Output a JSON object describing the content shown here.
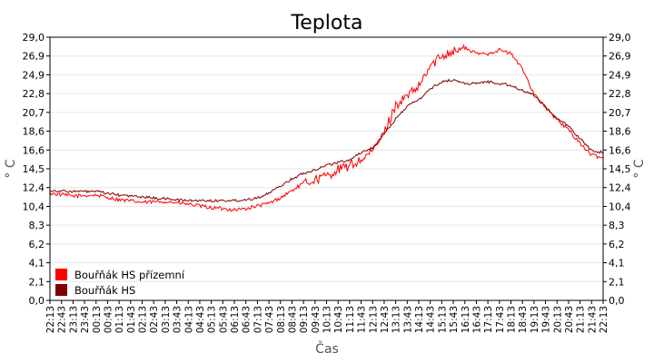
{
  "chart_data": {
    "type": "line",
    "title": "Teplota",
    "xlabel": "Čas",
    "ylabel": "° C",
    "ylim": [
      0,
      29
    ],
    "y_ticks": [
      "0,0",
      "2,1",
      "4,1",
      "6,2",
      "8,3",
      "10,4",
      "12,4",
      "14,5",
      "16,6",
      "18,6",
      "20,7",
      "22,8",
      "24,9",
      "26,9",
      "29,0"
    ],
    "x_ticks": [
      "22:13",
      "22:43",
      "23:13",
      "23:43",
      "00:13",
      "00:43",
      "01:13",
      "01:43",
      "02:13",
      "02:43",
      "03:13",
      "03:43",
      "04:13",
      "04:43",
      "05:13",
      "05:43",
      "06:13",
      "06:43",
      "07:13",
      "07:43",
      "08:13",
      "08:43",
      "09:13",
      "09:43",
      "10:13",
      "10:43",
      "11:13",
      "11:43",
      "12:13",
      "12:43",
      "13:13",
      "13:43",
      "14:13",
      "14:43",
      "15:13",
      "15:43",
      "16:13",
      "16:43",
      "17:13",
      "17:43",
      "18:13",
      "18:43",
      "19:13",
      "19:43",
      "20:13",
      "20:43",
      "21:13",
      "21:43",
      "22:13"
    ],
    "legend_position": "bottom-left",
    "grid": "horizontal",
    "x_hours": [
      0,
      1,
      2,
      3,
      4,
      5,
      6,
      7,
      8,
      8.5,
      9,
      9.5,
      10,
      10.5,
      11,
      11.5,
      12,
      12.5,
      13,
      13.5,
      14,
      14.5,
      15,
      15.5,
      16,
      16.5,
      17,
      17.5,
      18,
      18.5,
      19,
      19.5,
      20,
      20.5,
      21,
      21.5,
      22,
      22.5,
      23,
      23.5,
      24
    ],
    "series": [
      {
        "name": "Bouřňák HS přízemní",
        "color": "#ff0000",
        "values": [
          11.8,
          11.5,
          11.6,
          11.1,
          10.8,
          10.9,
          10.6,
          10.2,
          10.0,
          10.1,
          10.4,
          10.7,
          11.3,
          12.1,
          12.9,
          13.3,
          13.7,
          14.4,
          14.8,
          15.5,
          16.4,
          18.5,
          21.5,
          22.5,
          23.5,
          25.8,
          27.0,
          27.5,
          27.8,
          27.2,
          27.2,
          27.6,
          27.2,
          25.5,
          22.8,
          21.2,
          19.9,
          18.8,
          17.3,
          16.0,
          15.7
        ]
      },
      {
        "name": "Bouřňák HS",
        "color": "#800000",
        "values": [
          12.1,
          12.0,
          12.0,
          11.6,
          11.4,
          11.2,
          11.0,
          11.0,
          11.0,
          11.1,
          11.3,
          11.8,
          12.6,
          13.4,
          14.0,
          14.4,
          14.9,
          15.2,
          15.5,
          16.3,
          16.8,
          18.3,
          20.0,
          21.4,
          22.1,
          23.3,
          24.1,
          24.3,
          23.9,
          23.9,
          24.1,
          23.9,
          23.7,
          23.1,
          22.6,
          21.4,
          20.0,
          19.2,
          17.8,
          16.5,
          16.3
        ]
      }
    ]
  }
}
